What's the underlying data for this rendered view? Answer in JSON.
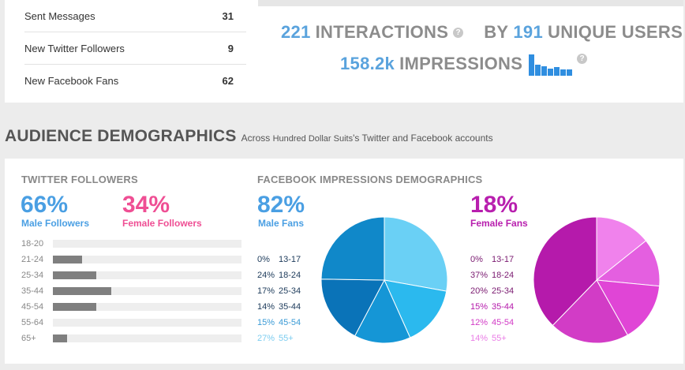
{
  "stats_list": [
    {
      "label": "Sent Messages",
      "value": "31"
    },
    {
      "label": "New Twitter Followers",
      "value": "9"
    },
    {
      "label": "New Facebook Fans",
      "value": "62"
    }
  ],
  "metrics": {
    "interactions_value": "221",
    "interactions_label": "INTERACTIONS",
    "by_label": "BY",
    "unique_value": "191",
    "unique_label": "UNIQUE USERS",
    "impressions_value": "158.2k",
    "impressions_label": "IMPRESSIONS",
    "help_glyph": "?",
    "impressions_sparkline": [
      0.9,
      0.45,
      0.4,
      0.3,
      0.35,
      0.25,
      0.25
    ],
    "spark_color": "#2f8ee0"
  },
  "section": {
    "title": "AUDIENCE DEMOGRAPHICS",
    "subtitle_prefix": "Across",
    "account": "Hundred Dollar Suits",
    "subtitle_suffix": "'s Twitter and Facebook accounts"
  },
  "twitter": {
    "title": "TWITTER FOLLOWERS",
    "male_pct": "66%",
    "male_label": "Male Followers",
    "female_pct": "34%",
    "female_label": "Female Followers",
    "age_groups": [
      {
        "label": "18-20",
        "fraction": 0.0
      },
      {
        "label": "21-24",
        "fraction": 0.155
      },
      {
        "label": "25-34",
        "fraction": 0.23
      },
      {
        "label": "35-44",
        "fraction": 0.31
      },
      {
        "label": "45-54",
        "fraction": 0.23
      },
      {
        "label": "55-64",
        "fraction": 0.0
      },
      {
        "label": "65+",
        "fraction": 0.075
      }
    ]
  },
  "facebook": {
    "title": "FACEBOOK IMPRESSIONS DEMOGRAPHICS",
    "male_pct": "82%",
    "male_label": "Male Fans",
    "female_pct": "18%",
    "female_label": "Female Fans",
    "male_breakdown": [
      {
        "pct": "0%",
        "range": "13-17",
        "value": 0
      },
      {
        "pct": "24%",
        "range": "18-24",
        "value": 24
      },
      {
        "pct": "17%",
        "range": "25-34",
        "value": 17
      },
      {
        "pct": "14%",
        "range": "35-44",
        "value": 14
      },
      {
        "pct": "15%",
        "range": "45-54",
        "value": 15
      },
      {
        "pct": "27%",
        "range": "55+",
        "value": 27
      }
    ],
    "female_breakdown": [
      {
        "pct": "0%",
        "range": "13-17",
        "value": 0
      },
      {
        "pct": "37%",
        "range": "18-24",
        "value": 37
      },
      {
        "pct": "20%",
        "range": "25-34",
        "value": 20
      },
      {
        "pct": "15%",
        "range": "35-44",
        "value": 15
      },
      {
        "pct": "12%",
        "range": "45-54",
        "value": 12
      },
      {
        "pct": "14%",
        "range": "55+",
        "value": 14
      }
    ],
    "male_colors": [
      "#1a6fb0",
      "#1088c9",
      "#0a73b8",
      "#1596d6",
      "#2bb9ee",
      "#6ad0f5"
    ],
    "female_colors": [
      "#b51aab",
      "#b51aab",
      "#d23cc6",
      "#e045d6",
      "#e45fe0",
      "#f082ec"
    ],
    "male_text_colors": [
      "#1c3a5a",
      "#1c3a5a",
      "#1c3a5a",
      "#1c3a5a",
      "#3b9bd6",
      "#7dcdf0"
    ],
    "female_text_colors": [
      "#7a1a70",
      "#7a1a70",
      "#7a1a70",
      "#b51aab",
      "#d23cc6",
      "#ea7ee6"
    ]
  }
}
